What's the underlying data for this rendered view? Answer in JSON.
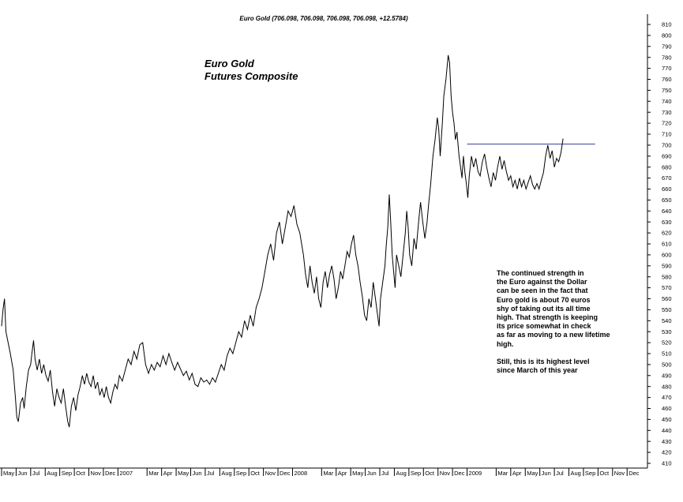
{
  "header": "Euro Gold (706.098, 706.098, 706.098, 706.098, +12.5784)",
  "title_lines": [
    "Euro Gold",
    "Futures Composite"
  ],
  "annotation": {
    "paragraph1": [
      "The continued strength in",
      "the Euro against the Dollar",
      "can be seen in the fact that",
      "Euro gold  is about 70 euros",
      "shy of taking out its all time",
      "high. That strength is keeping",
      "its price somewhat in check",
      "as far as moving to a new lifetime",
      "high."
    ],
    "paragraph2": [
      "Still, this is its highest level",
      "since March of this year"
    ]
  },
  "colors": {
    "price_line": "#000000",
    "resistance_line": "#4040a0",
    "axis": "#000000"
  },
  "chart_data": {
    "type": "line",
    "title": "Euro Gold (706.098, 706.098, 706.098, 706.098, +12.5784)",
    "ylim": [
      410,
      815
    ],
    "y_ticks": [
      410,
      420,
      430,
      440,
      450,
      460,
      470,
      480,
      490,
      500,
      510,
      520,
      530,
      540,
      550,
      560,
      570,
      580,
      590,
      600,
      610,
      620,
      630,
      640,
      650,
      660,
      670,
      680,
      690,
      700,
      710,
      720,
      730,
      740,
      750,
      760,
      770,
      780,
      790,
      800,
      810
    ],
    "x_tick_labels": [
      "May",
      "Jun",
      "Jul",
      "Aug",
      "Sep",
      "Oct",
      "Nov",
      "Dec",
      "2007",
      "Mar",
      "Apr",
      "May",
      "Jun",
      "Jul",
      "Aug",
      "Sep",
      "Oct",
      "Nov",
      "Dec",
      "2008",
      "Mar",
      "Apr",
      "May",
      "Jun",
      "Jul",
      "Aug",
      "Sep",
      "Oct",
      "Nov",
      "Dec",
      "2009",
      "Mar",
      "Apr",
      "May",
      "Jun",
      "Jul",
      "Aug",
      "Sep",
      "Oct",
      "Nov",
      "Dec"
    ],
    "x_tick_index": [
      0,
      1,
      2,
      3,
      4,
      5,
      6,
      7,
      8,
      10,
      11,
      12,
      13,
      14,
      15,
      16,
      17,
      18,
      19,
      20,
      22,
      23,
      24,
      25,
      26,
      27,
      28,
      29,
      30,
      31,
      32,
      34,
      35,
      36,
      37,
      38,
      39,
      40,
      41,
      42,
      43
    ],
    "x_months_total": 44.4,
    "series": [
      {
        "values": [
          [
            0.0,
            535
          ],
          [
            0.1,
            550
          ],
          [
            0.2,
            560
          ],
          [
            0.3,
            530
          ],
          [
            0.45,
            520
          ],
          [
            0.6,
            510
          ],
          [
            0.8,
            495
          ],
          [
            0.95,
            470
          ],
          [
            1.05,
            452
          ],
          [
            1.15,
            448
          ],
          [
            1.3,
            465
          ],
          [
            1.45,
            470
          ],
          [
            1.55,
            460
          ],
          [
            1.7,
            480
          ],
          [
            1.85,
            495
          ],
          [
            2.0,
            500
          ],
          [
            2.1,
            512
          ],
          [
            2.2,
            522
          ],
          [
            2.3,
            505
          ],
          [
            2.45,
            495
          ],
          [
            2.6,
            505
          ],
          [
            2.75,
            492
          ],
          [
            2.9,
            500
          ],
          [
            3.05,
            490
          ],
          [
            3.2,
            485
          ],
          [
            3.35,
            495
          ],
          [
            3.5,
            475
          ],
          [
            3.65,
            462
          ],
          [
            3.8,
            478
          ],
          [
            3.95,
            470
          ],
          [
            4.1,
            465
          ],
          [
            4.25,
            478
          ],
          [
            4.4,
            462
          ],
          [
            4.55,
            448
          ],
          [
            4.65,
            443
          ],
          [
            4.8,
            462
          ],
          [
            4.95,
            470
          ],
          [
            5.1,
            458
          ],
          [
            5.25,
            472
          ],
          [
            5.4,
            480
          ],
          [
            5.55,
            490
          ],
          [
            5.7,
            482
          ],
          [
            5.85,
            492
          ],
          [
            6.0,
            484
          ],
          [
            6.15,
            480
          ],
          [
            6.3,
            490
          ],
          [
            6.45,
            478
          ],
          [
            6.6,
            484
          ],
          [
            6.75,
            472
          ],
          [
            6.9,
            478
          ],
          [
            7.05,
            470
          ],
          [
            7.2,
            480
          ],
          [
            7.35,
            470
          ],
          [
            7.5,
            465
          ],
          [
            7.65,
            475
          ],
          [
            7.8,
            482
          ],
          [
            7.95,
            478
          ],
          [
            8.1,
            490
          ],
          [
            8.3,
            485
          ],
          [
            8.5,
            495
          ],
          [
            8.7,
            505
          ],
          [
            8.9,
            500
          ],
          [
            9.1,
            512
          ],
          [
            9.3,
            505
          ],
          [
            9.5,
            518
          ],
          [
            9.7,
            520
          ],
          [
            9.9,
            500
          ],
          [
            10.1,
            492
          ],
          [
            10.3,
            500
          ],
          [
            10.5,
            495
          ],
          [
            10.7,
            502
          ],
          [
            10.9,
            498
          ],
          [
            11.1,
            508
          ],
          [
            11.3,
            500
          ],
          [
            11.5,
            510
          ],
          [
            11.7,
            502
          ],
          [
            11.9,
            495
          ],
          [
            12.1,
            502
          ],
          [
            12.3,
            496
          ],
          [
            12.5,
            490
          ],
          [
            12.7,
            494
          ],
          [
            12.9,
            486
          ],
          [
            13.1,
            492
          ],
          [
            13.3,
            482
          ],
          [
            13.5,
            480
          ],
          [
            13.7,
            488
          ],
          [
            13.9,
            484
          ],
          [
            14.1,
            486
          ],
          [
            14.3,
            482
          ],
          [
            14.5,
            488
          ],
          [
            14.7,
            484
          ],
          [
            14.9,
            492
          ],
          [
            15.1,
            500
          ],
          [
            15.3,
            495
          ],
          [
            15.5,
            508
          ],
          [
            15.7,
            515
          ],
          [
            15.9,
            510
          ],
          [
            16.1,
            520
          ],
          [
            16.3,
            530
          ],
          [
            16.5,
            525
          ],
          [
            16.7,
            540
          ],
          [
            16.9,
            532
          ],
          [
            17.1,
            545
          ],
          [
            17.3,
            535
          ],
          [
            17.5,
            552
          ],
          [
            17.7,
            560
          ],
          [
            17.9,
            570
          ],
          [
            18.1,
            585
          ],
          [
            18.3,
            600
          ],
          [
            18.5,
            610
          ],
          [
            18.7,
            595
          ],
          [
            18.9,
            620
          ],
          [
            19.1,
            630
          ],
          [
            19.3,
            610
          ],
          [
            19.5,
            625
          ],
          [
            19.7,
            640
          ],
          [
            19.9,
            635
          ],
          [
            20.1,
            645
          ],
          [
            20.3,
            628
          ],
          [
            20.5,
            620
          ],
          [
            20.6,
            612
          ],
          [
            20.75,
            600
          ],
          [
            20.9,
            582
          ],
          [
            21.05,
            570
          ],
          [
            21.2,
            590
          ],
          [
            21.35,
            575
          ],
          [
            21.5,
            565
          ],
          [
            21.65,
            580
          ],
          [
            21.8,
            560
          ],
          [
            21.95,
            552
          ],
          [
            22.1,
            575
          ],
          [
            22.25,
            585
          ],
          [
            22.4,
            570
          ],
          [
            22.55,
            582
          ],
          [
            22.7,
            590
          ],
          [
            22.85,
            578
          ],
          [
            23.0,
            560
          ],
          [
            23.15,
            570
          ],
          [
            23.3,
            585
          ],
          [
            23.45,
            578
          ],
          [
            23.6,
            590
          ],
          [
            23.75,
            603
          ],
          [
            23.9,
            598
          ],
          [
            24.05,
            610
          ],
          [
            24.2,
            618
          ],
          [
            24.35,
            600
          ],
          [
            24.5,
            590
          ],
          [
            24.65,
            575
          ],
          [
            24.8,
            562
          ],
          [
            24.95,
            545
          ],
          [
            25.1,
            540
          ],
          [
            25.25,
            560
          ],
          [
            25.4,
            552
          ],
          [
            25.55,
            575
          ],
          [
            25.7,
            560
          ],
          [
            25.85,
            545
          ],
          [
            25.95,
            535
          ],
          [
            26.05,
            560
          ],
          [
            26.2,
            575
          ],
          [
            26.35,
            590
          ],
          [
            26.45,
            610
          ],
          [
            26.55,
            625
          ],
          [
            26.65,
            655
          ],
          [
            26.75,
            630
          ],
          [
            26.85,
            600
          ],
          [
            26.95,
            585
          ],
          [
            27.05,
            570
          ],
          [
            27.15,
            600
          ],
          [
            27.3,
            590
          ],
          [
            27.45,
            580
          ],
          [
            27.6,
            600
          ],
          [
            27.75,
            620
          ],
          [
            27.85,
            640
          ],
          [
            27.95,
            625
          ],
          [
            28.05,
            600
          ],
          [
            28.2,
            590
          ],
          [
            28.35,
            615
          ],
          [
            28.5,
            605
          ],
          [
            28.6,
            620
          ],
          [
            28.7,
            635
          ],
          [
            28.8,
            648
          ],
          [
            28.95,
            630
          ],
          [
            29.1,
            615
          ],
          [
            29.25,
            630
          ],
          [
            29.35,
            645
          ],
          [
            29.5,
            665
          ],
          [
            29.65,
            690
          ],
          [
            29.8,
            705
          ],
          [
            29.95,
            725
          ],
          [
            30.05,
            715
          ],
          [
            30.15,
            690
          ],
          [
            30.3,
            720
          ],
          [
            30.4,
            745
          ],
          [
            30.55,
            760
          ],
          [
            30.7,
            782
          ],
          [
            30.8,
            775
          ],
          [
            30.9,
            745
          ],
          [
            31.0,
            730
          ],
          [
            31.1,
            720
          ],
          [
            31.2,
            705
          ],
          [
            31.3,
            712
          ],
          [
            31.45,
            690
          ],
          [
            31.55,
            680
          ],
          [
            31.65,
            670
          ],
          [
            31.75,
            690
          ],
          [
            31.85,
            675
          ],
          [
            31.95,
            665
          ],
          [
            32.05,
            652
          ],
          [
            32.15,
            672
          ],
          [
            32.3,
            690
          ],
          [
            32.45,
            680
          ],
          [
            32.6,
            688
          ],
          [
            32.75,
            676
          ],
          [
            32.9,
            672
          ],
          [
            33.05,
            685
          ],
          [
            33.2,
            692
          ],
          [
            33.35,
            680
          ],
          [
            33.5,
            670
          ],
          [
            33.65,
            662
          ],
          [
            33.8,
            675
          ],
          [
            33.95,
            668
          ],
          [
            34.1,
            680
          ],
          [
            34.25,
            690
          ],
          [
            34.4,
            678
          ],
          [
            34.55,
            686
          ],
          [
            34.7,
            676
          ],
          [
            34.85,
            668
          ],
          [
            35.0,
            672
          ],
          [
            35.15,
            662
          ],
          [
            35.3,
            668
          ],
          [
            35.45,
            660
          ],
          [
            35.6,
            670
          ],
          [
            35.75,
            662
          ],
          [
            35.9,
            668
          ],
          [
            36.05,
            660
          ],
          [
            36.2,
            666
          ],
          [
            36.35,
            672
          ],
          [
            36.5,
            664
          ],
          [
            36.65,
            660
          ],
          [
            36.8,
            665
          ],
          [
            36.95,
            660
          ],
          [
            37.1,
            668
          ],
          [
            37.25,
            675
          ],
          [
            37.4,
            690
          ],
          [
            37.55,
            700
          ],
          [
            37.7,
            688
          ],
          [
            37.85,
            695
          ],
          [
            38.0,
            680
          ],
          [
            38.15,
            688
          ],
          [
            38.3,
            685
          ],
          [
            38.45,
            693
          ],
          [
            38.6,
            706
          ]
        ]
      }
    ],
    "resistance_level": 701,
    "resistance_x_range": [
      32.0,
      40.8
    ]
  }
}
